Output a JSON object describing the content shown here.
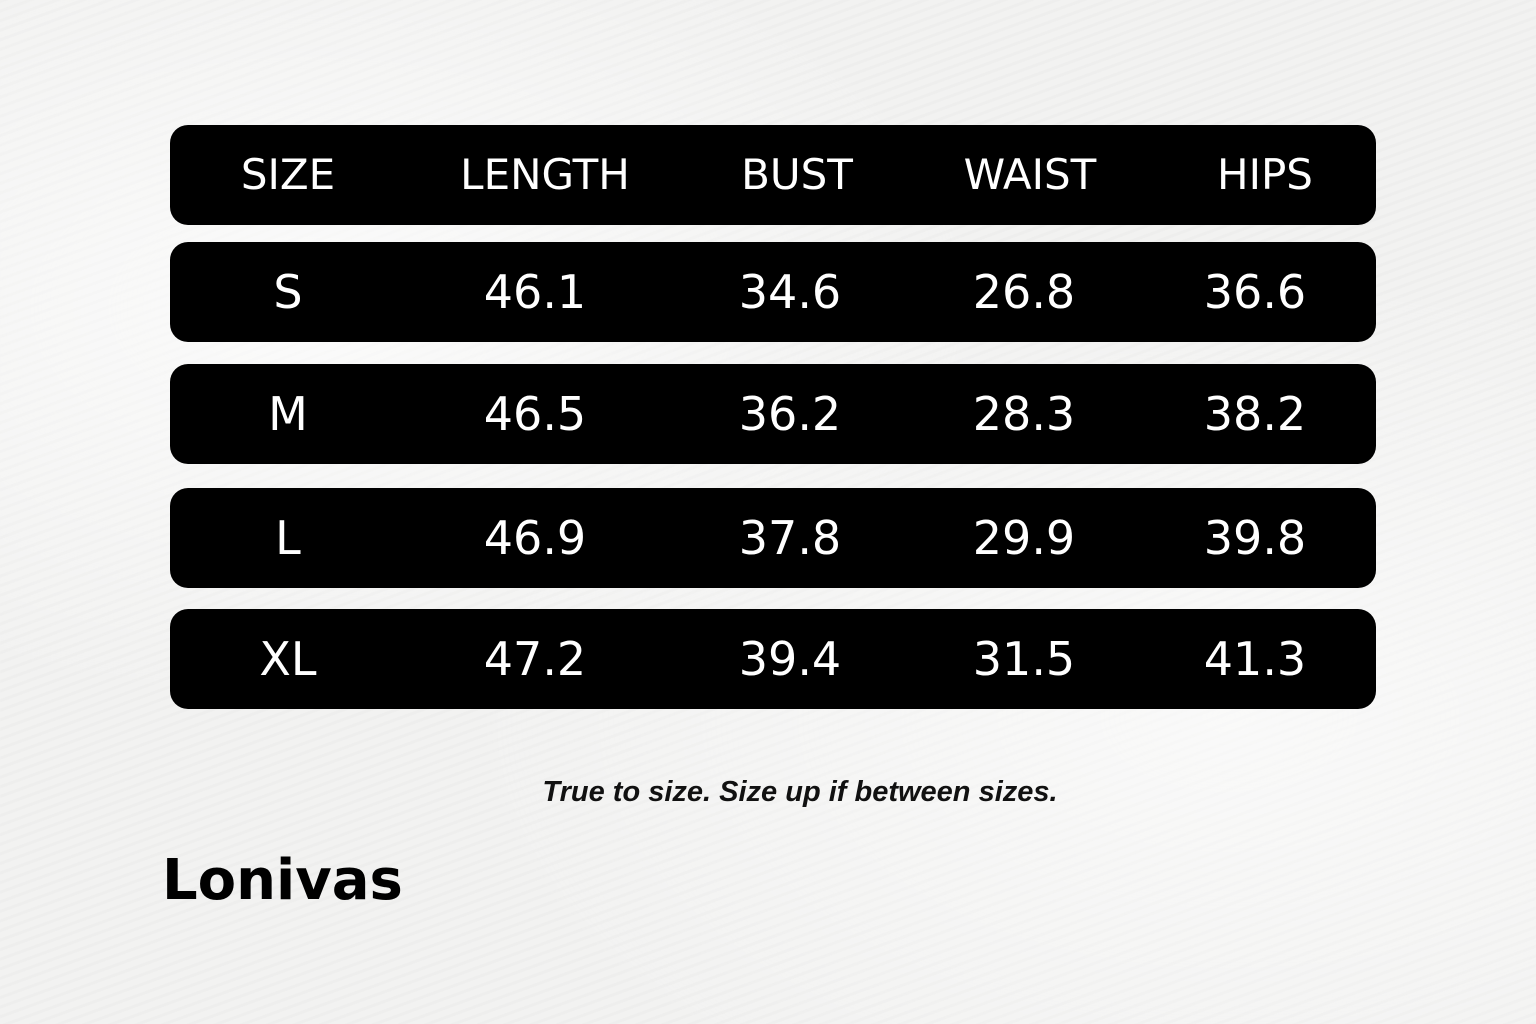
{
  "table": {
    "headers": [
      "SIZE",
      "LENGTH",
      "BUST",
      "WAIST",
      "HIPS"
    ],
    "rows": [
      [
        "S",
        "46.1",
        "34.6",
        "26.8",
        "36.6"
      ],
      [
        "M",
        "46.5",
        "36.2",
        "28.3",
        "38.2"
      ],
      [
        "L",
        "46.9",
        "37.8",
        "29.9",
        "39.8"
      ],
      [
        "XL",
        "47.2",
        "39.4",
        "31.5",
        "41.3"
      ]
    ]
  },
  "note": "True to size. Size up if between sizes.",
  "brand": "Lonivas",
  "colors": {
    "row_background": "#000000",
    "row_text": "#ffffff",
    "page_background": "#f2f2f1"
  }
}
